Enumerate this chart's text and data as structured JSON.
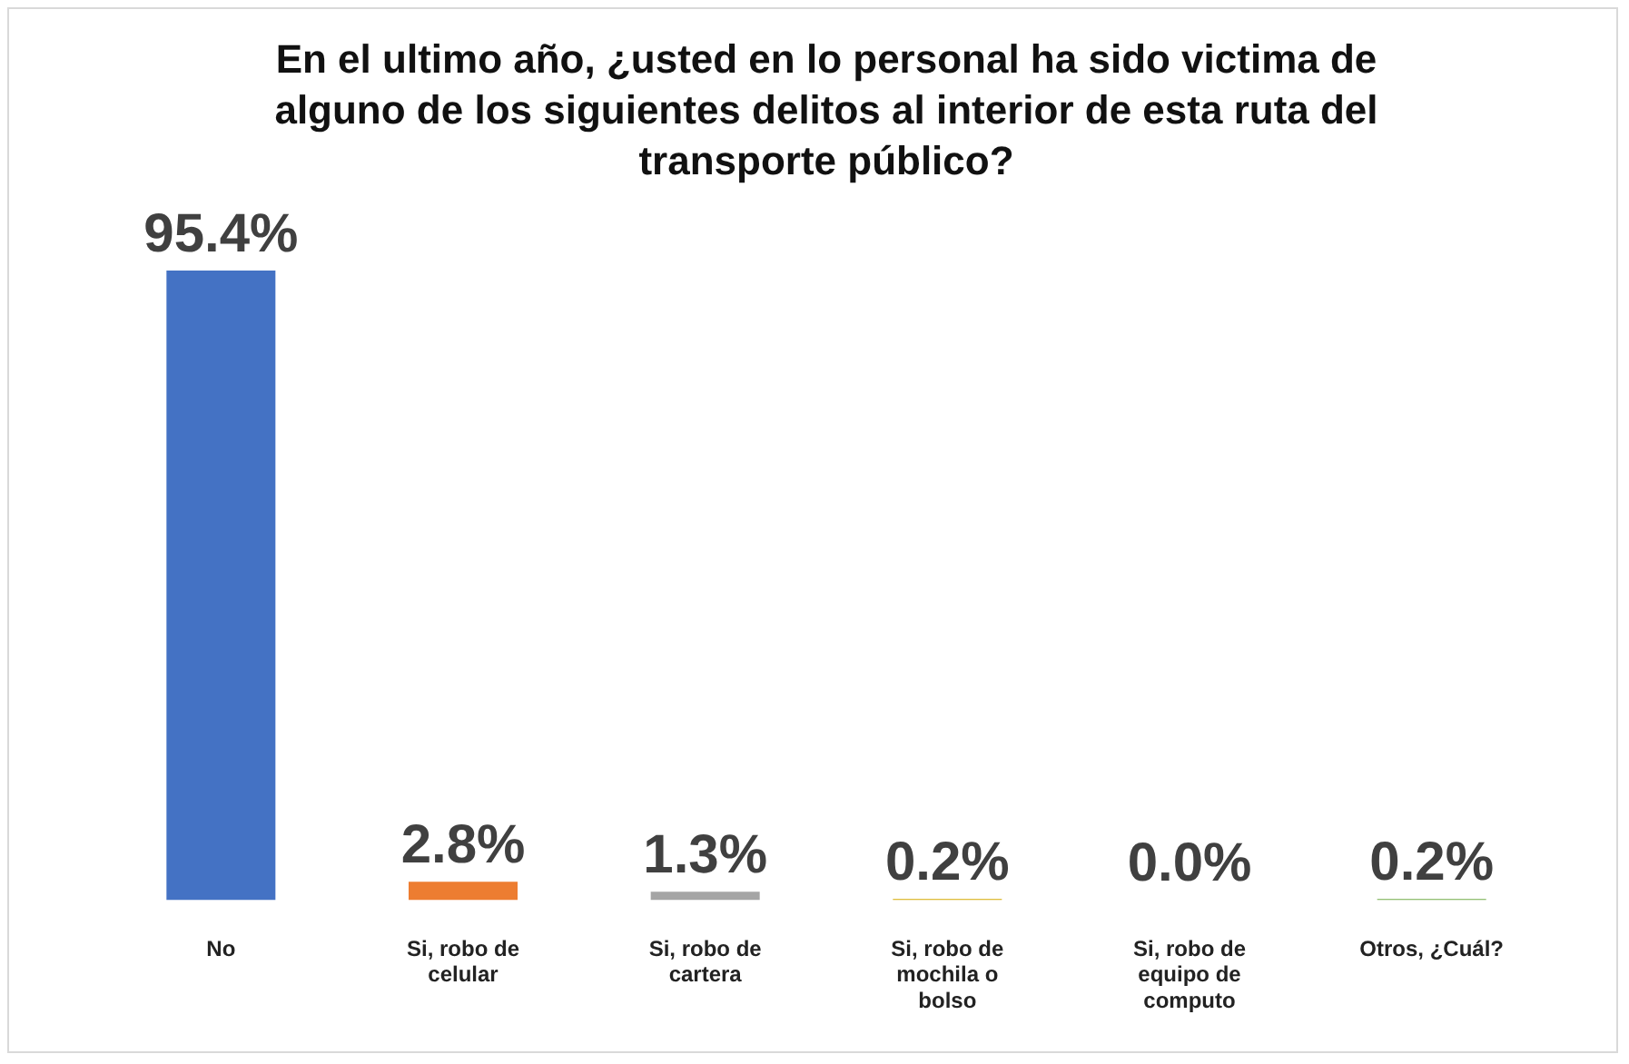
{
  "chart_data": {
    "type": "bar",
    "title": "En el ultimo año, ¿usted en lo personal ha sido victima de alguno de los siguientes delitos al interior de esta ruta del transporte público?",
    "categories": [
      "No",
      "Si, robo de celular",
      "Si, robo de cartera",
      "Si, robo de mochila o bolso",
      "Si, robo de equipo de computo",
      "Otros, ¿Cuál?"
    ],
    "values": [
      95.4,
      2.8,
      1.3,
      0.2,
      0.0,
      0.2
    ],
    "colors": [
      "#4472c4",
      "#ed7d31",
      "#a5a5a5",
      "#d4a900",
      "#5b9bd5",
      "#70ad47"
    ],
    "value_labels": [
      "95.4%",
      "2.8%",
      "1.3%",
      "0.2%",
      "0.0%",
      "0.2%"
    ],
    "grid": false,
    "legend": false
  }
}
